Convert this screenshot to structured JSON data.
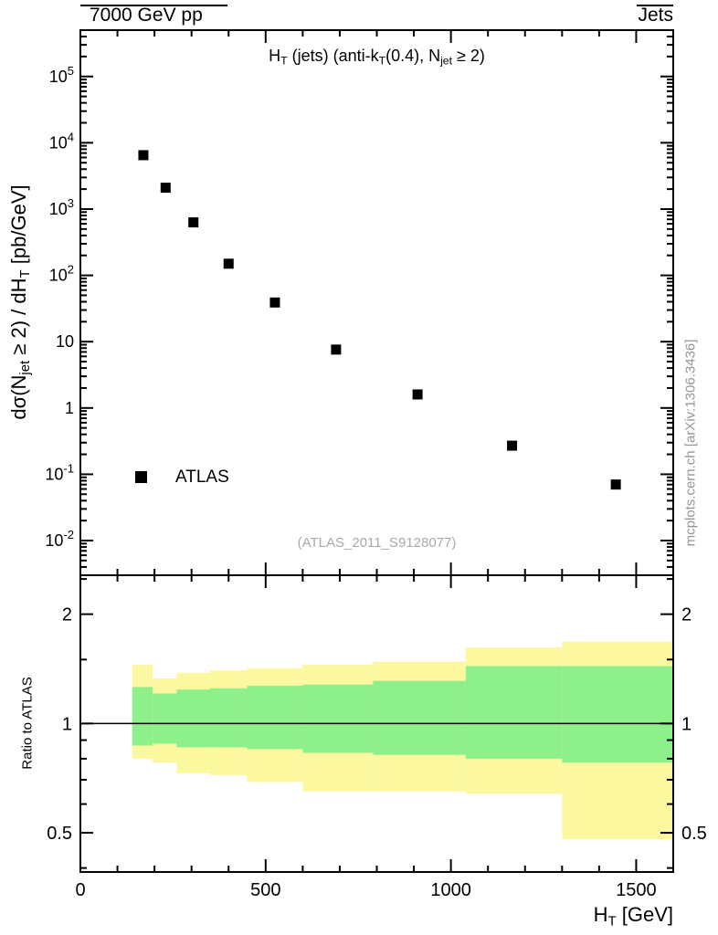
{
  "header": {
    "left": "7000 GeV pp",
    "right": "Jets"
  },
  "text": {
    "panel_title_parts": [
      {
        "t": "H"
      },
      {
        "sub": "T"
      },
      {
        "t": " (jets) (anti-k"
      },
      {
        "sub": "T"
      },
      {
        "t": "(0.4), N"
      },
      {
        "sub": "jet"
      },
      {
        "t": " ≥ 2)"
      }
    ],
    "y_axis_parts": [
      {
        "t": "dσ(N"
      },
      {
        "sub": "jet"
      },
      {
        "t": " ≥ 2) / dH"
      },
      {
        "sub": "T"
      },
      {
        "t": " [pb/GeV]"
      }
    ],
    "x_axis_parts": [
      {
        "t": "H"
      },
      {
        "sub": "T"
      },
      {
        "t": " [GeV]"
      }
    ],
    "ratio_axis_label": "Ratio to ATLAS",
    "legend_atlas": "ATLAS",
    "watermark": "(ATLAS_2011_S9128077)",
    "side_note": "mcplots.cern.ch [arXiv:1306.3436]"
  },
  "colors": {
    "marker": "#000000",
    "band_outer": "#fbf8a0",
    "band_inner": "#8df08b",
    "watermark": "#a9a9a9",
    "side_note": "#969696"
  },
  "chart_data": {
    "type": "scatter",
    "title": "H_T (jets) (anti-k_T(0.4), N_jet ≥ 2)",
    "xlabel": "H_T [GeV]",
    "ylabel": "dσ(N_jet ≥ 2) / dH_T [pb/GeV]",
    "x_scale": "linear",
    "y_scale": "log",
    "xlim": [
      0,
      1600
    ],
    "ylim": [
      0.003,
      500000
    ],
    "x_major_ticks": [
      0,
      500,
      1000,
      1500
    ],
    "x_minor_step": 100,
    "y_decade_labels": [
      -2,
      -1,
      0,
      1,
      2,
      3,
      4,
      5
    ],
    "legend_position": "left-middle",
    "grid": false,
    "series": [
      {
        "name": "ATLAS",
        "marker": "filled-square",
        "color": "#000000",
        "x": [
          170,
          230,
          305,
          400,
          525,
          690,
          910,
          1165,
          1445
        ],
        "y": [
          6500,
          2100,
          630,
          150,
          39,
          7.6,
          1.6,
          0.27,
          0.07
        ]
      }
    ],
    "ratio_panel": {
      "ylabel": "Ratio to ATLAS",
      "scale": "log",
      "ylim": [
        0.39,
        2.56
      ],
      "major_ticks": [
        0.5,
        1,
        2
      ],
      "minor_ticks": [
        0.4,
        0.6,
        0.7,
        0.8,
        0.9,
        1.5,
        2.5
      ],
      "reference_line": 1,
      "bands": {
        "outer_color": "#fbf8a0",
        "inner_color": "#8df08b",
        "bins": [
          {
            "xlo": 140,
            "xhi": 195,
            "outer": [
              0.8,
              1.45
            ],
            "inner": [
              0.87,
              1.26
            ]
          },
          {
            "xlo": 195,
            "xhi": 260,
            "outer": [
              0.78,
              1.33
            ],
            "inner": [
              0.88,
              1.21
            ]
          },
          {
            "xlo": 260,
            "xhi": 350,
            "outer": [
              0.73,
              1.38
            ],
            "inner": [
              0.86,
              1.24
            ]
          },
          {
            "xlo": 350,
            "xhi": 450,
            "outer": [
              0.72,
              1.4
            ],
            "inner": [
              0.86,
              1.25
            ]
          },
          {
            "xlo": 450,
            "xhi": 600,
            "outer": [
              0.69,
              1.42
            ],
            "inner": [
              0.85,
              1.27
            ]
          },
          {
            "xlo": 600,
            "xhi": 790,
            "outer": [
              0.65,
              1.45
            ],
            "inner": [
              0.83,
              1.28
            ]
          },
          {
            "xlo": 790,
            "xhi": 1040,
            "outer": [
              0.65,
              1.48
            ],
            "inner": [
              0.82,
              1.31
            ]
          },
          {
            "xlo": 1040,
            "xhi": 1300,
            "outer": [
              0.64,
              1.62
            ],
            "inner": [
              0.8,
              1.44
            ]
          },
          {
            "xlo": 1300,
            "xhi": 1600,
            "outer": [
              0.48,
              1.68
            ],
            "inner": [
              0.78,
              1.44
            ]
          }
        ]
      }
    }
  }
}
